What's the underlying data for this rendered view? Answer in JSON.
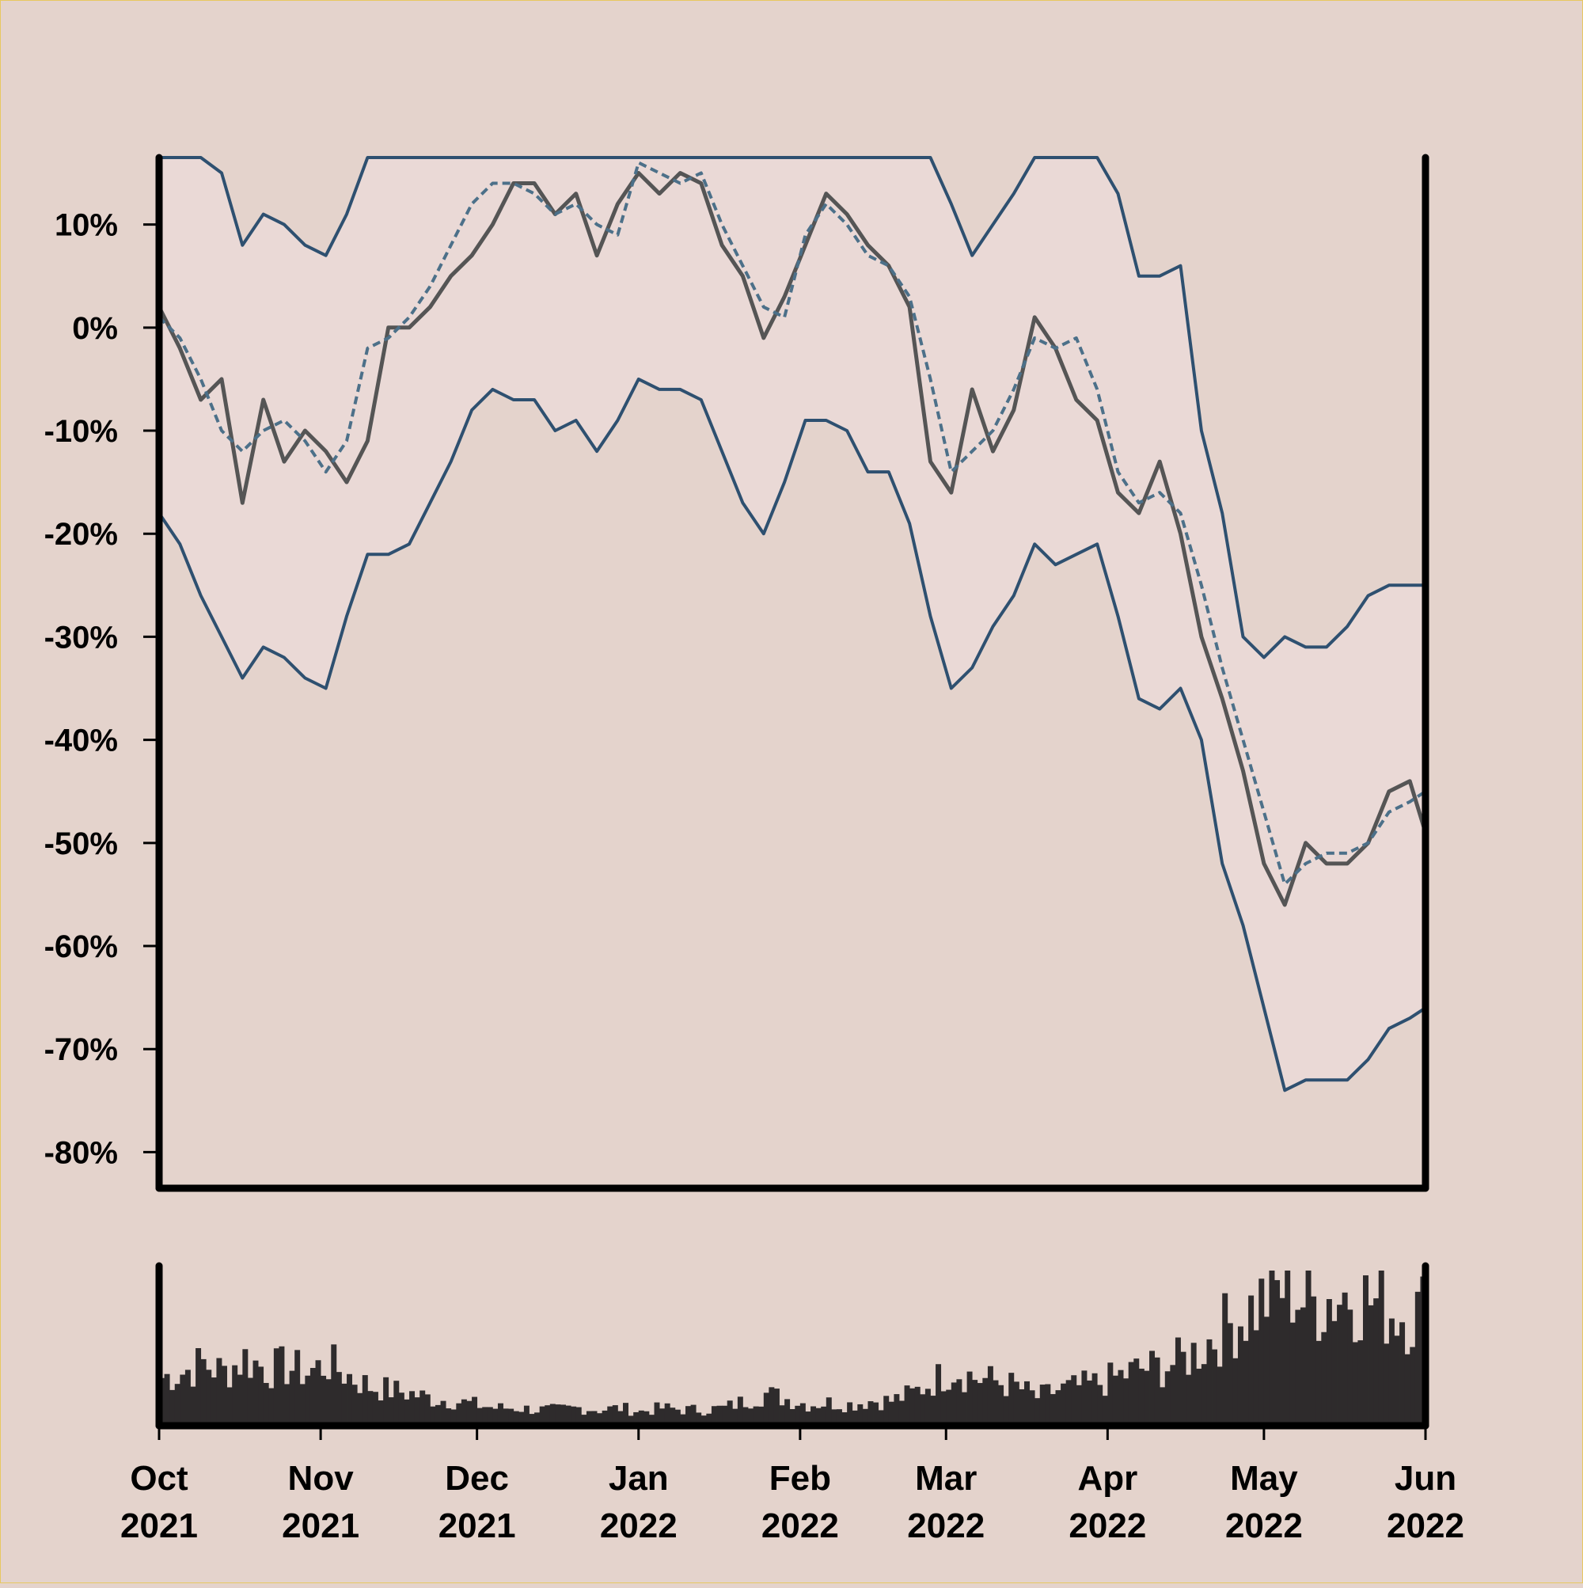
{
  "chart_data": [
    {
      "type": "line",
      "title": "",
      "xlabel": "",
      "ylabel": "",
      "x_range": [
        "2021-10-01",
        "2022-06-01"
      ],
      "y_range": [
        -0.835,
        0.165
      ],
      "y_ticks": [
        0.1,
        0.0,
        -0.1,
        -0.2,
        -0.3,
        -0.4,
        -0.5,
        -0.6,
        -0.7,
        -0.8
      ],
      "y_tick_labels": [
        "10%",
        "0%",
        "-10%",
        "-20%",
        "-30%",
        "-40%",
        "-50%",
        "-60%",
        "-70%",
        "-80%"
      ],
      "grid": false,
      "legend": "none",
      "band": {
        "description": "envelope shaded between upper and lower lines",
        "fill_color": "#ead9d6",
        "line_color": "#2e5070",
        "upper_clip": 0.165
      },
      "colors": {
        "price": "#555555",
        "moving_average": "#4c7089",
        "band": "#2e5070",
        "background": "#e4d3cc"
      },
      "series": [
        {
          "role": "price",
          "style": "solid",
          "x": [
            "2021-10-01",
            "2021-10-05",
            "2021-10-09",
            "2021-10-13",
            "2021-10-17",
            "2021-10-21",
            "2021-10-25",
            "2021-10-29",
            "2021-11-02",
            "2021-11-06",
            "2021-11-10",
            "2021-11-14",
            "2021-11-18",
            "2021-11-22",
            "2021-11-26",
            "2021-11-30",
            "2021-12-04",
            "2021-12-08",
            "2021-12-12",
            "2021-12-16",
            "2021-12-20",
            "2021-12-24",
            "2021-12-28",
            "2022-01-01",
            "2022-01-05",
            "2022-01-09",
            "2022-01-13",
            "2022-01-17",
            "2022-01-21",
            "2022-01-25",
            "2022-01-29",
            "2022-02-02",
            "2022-02-06",
            "2022-02-10",
            "2022-02-14",
            "2022-02-18",
            "2022-02-22",
            "2022-02-26",
            "2022-03-02",
            "2022-03-06",
            "2022-03-10",
            "2022-03-14",
            "2022-03-18",
            "2022-03-22",
            "2022-03-26",
            "2022-03-30",
            "2022-04-03",
            "2022-04-07",
            "2022-04-11",
            "2022-04-15",
            "2022-04-19",
            "2022-04-23",
            "2022-04-27",
            "2022-05-01",
            "2022-05-05",
            "2022-05-09",
            "2022-05-13",
            "2022-05-17",
            "2022-05-21",
            "2022-05-25",
            "2022-05-29",
            "2022-06-01"
          ],
          "y": [
            0.02,
            -0.02,
            -0.07,
            -0.05,
            -0.17,
            -0.07,
            -0.13,
            -0.1,
            -0.12,
            -0.15,
            -0.11,
            0.0,
            0.0,
            0.02,
            0.05,
            0.07,
            0.1,
            0.14,
            0.14,
            0.11,
            0.13,
            0.07,
            0.12,
            0.15,
            0.13,
            0.15,
            0.14,
            0.08,
            0.05,
            -0.01,
            0.03,
            0.08,
            0.13,
            0.11,
            0.08,
            0.06,
            0.02,
            -0.13,
            -0.16,
            -0.06,
            -0.12,
            -0.08,
            0.01,
            -0.02,
            -0.07,
            -0.09,
            -0.16,
            -0.18,
            -0.13,
            -0.2,
            -0.3,
            -0.36,
            -0.43,
            -0.52,
            -0.56,
            -0.5,
            -0.52,
            -0.52,
            -0.5,
            -0.45,
            -0.44,
            -0.49
          ]
        },
        {
          "role": "moving_average",
          "style": "dashed",
          "x": [
            "2021-10-01",
            "2021-10-05",
            "2021-10-09",
            "2021-10-13",
            "2021-10-17",
            "2021-10-21",
            "2021-10-25",
            "2021-10-29",
            "2021-11-02",
            "2021-11-06",
            "2021-11-10",
            "2021-11-14",
            "2021-11-18",
            "2021-11-22",
            "2021-11-26",
            "2021-11-30",
            "2021-12-04",
            "2021-12-08",
            "2021-12-12",
            "2021-12-16",
            "2021-12-20",
            "2021-12-24",
            "2021-12-28",
            "2022-01-01",
            "2022-01-05",
            "2022-01-09",
            "2022-01-13",
            "2022-01-17",
            "2022-01-21",
            "2022-01-25",
            "2022-01-29",
            "2022-02-02",
            "2022-02-06",
            "2022-02-10",
            "2022-02-14",
            "2022-02-18",
            "2022-02-22",
            "2022-02-26",
            "2022-03-02",
            "2022-03-06",
            "2022-03-10",
            "2022-03-14",
            "2022-03-18",
            "2022-03-22",
            "2022-03-26",
            "2022-03-30",
            "2022-04-03",
            "2022-04-07",
            "2022-04-11",
            "2022-04-15",
            "2022-04-19",
            "2022-04-23",
            "2022-04-27",
            "2022-05-01",
            "2022-05-05",
            "2022-05-09",
            "2022-05-13",
            "2022-05-17",
            "2022-05-21",
            "2022-05-25",
            "2022-05-29",
            "2022-06-01"
          ],
          "y": [
            0.01,
            -0.01,
            -0.05,
            -0.1,
            -0.12,
            -0.1,
            -0.09,
            -0.11,
            -0.14,
            -0.11,
            -0.02,
            -0.01,
            0.01,
            0.04,
            0.08,
            0.12,
            0.14,
            0.14,
            0.13,
            0.11,
            0.12,
            0.1,
            0.09,
            0.16,
            0.15,
            0.14,
            0.15,
            0.1,
            0.06,
            0.02,
            0.01,
            0.09,
            0.12,
            0.1,
            0.07,
            0.06,
            0.03,
            -0.05,
            -0.14,
            -0.12,
            -0.1,
            -0.06,
            -0.01,
            -0.02,
            -0.01,
            -0.06,
            -0.14,
            -0.17,
            -0.16,
            -0.18,
            -0.25,
            -0.33,
            -0.4,
            -0.47,
            -0.54,
            -0.52,
            -0.51,
            -0.51,
            -0.5,
            -0.47,
            -0.46,
            -0.45
          ]
        },
        {
          "role": "upper_band",
          "style": "solid",
          "x": [
            "2021-10-01",
            "2021-10-05",
            "2021-10-09",
            "2021-10-13",
            "2021-10-17",
            "2021-10-21",
            "2021-10-25",
            "2021-10-29",
            "2021-11-02",
            "2021-11-06",
            "2021-11-10",
            "2021-11-14",
            "2021-11-18",
            "2021-11-22",
            "2021-11-26",
            "2021-11-30",
            "2021-12-04",
            "2021-12-08",
            "2021-12-12",
            "2021-12-16",
            "2021-12-20",
            "2021-12-24",
            "2021-12-28",
            "2022-01-01",
            "2022-01-05",
            "2022-01-09",
            "2022-01-13",
            "2022-01-17",
            "2022-01-21",
            "2022-01-25",
            "2022-01-29",
            "2022-02-02",
            "2022-02-06",
            "2022-02-10",
            "2022-02-14",
            "2022-02-18",
            "2022-02-22",
            "2022-02-26",
            "2022-03-02",
            "2022-03-06",
            "2022-03-10",
            "2022-03-14",
            "2022-03-18",
            "2022-03-22",
            "2022-03-26",
            "2022-03-30",
            "2022-04-03",
            "2022-04-07",
            "2022-04-11",
            "2022-04-15",
            "2022-04-19",
            "2022-04-23",
            "2022-04-27",
            "2022-05-01",
            "2022-05-05",
            "2022-05-09",
            "2022-05-13",
            "2022-05-17",
            "2022-05-21",
            "2022-05-25",
            "2022-05-29",
            "2022-06-01"
          ],
          "y": [
            0.165,
            0.165,
            0.165,
            0.15,
            0.08,
            0.11,
            0.1,
            0.08,
            0.07,
            0.11,
            0.165,
            0.165,
            0.165,
            0.165,
            0.165,
            0.165,
            0.165,
            0.165,
            0.165,
            0.165,
            0.165,
            0.165,
            0.165,
            0.165,
            0.165,
            0.165,
            0.165,
            0.165,
            0.165,
            0.165,
            0.165,
            0.165,
            0.165,
            0.165,
            0.165,
            0.165,
            0.165,
            0.165,
            0.12,
            0.07,
            0.1,
            0.13,
            0.165,
            0.165,
            0.165,
            0.165,
            0.13,
            0.05,
            0.05,
            0.06,
            -0.1,
            -0.18,
            -0.3,
            -0.32,
            -0.3,
            -0.31,
            -0.31,
            -0.29,
            -0.26,
            -0.25,
            -0.25,
            -0.25
          ]
        },
        {
          "role": "lower_band",
          "style": "solid",
          "x": [
            "2021-10-01",
            "2021-10-05",
            "2021-10-09",
            "2021-10-13",
            "2021-10-17",
            "2021-10-21",
            "2021-10-25",
            "2021-10-29",
            "2021-11-02",
            "2021-11-06",
            "2021-11-10",
            "2021-11-14",
            "2021-11-18",
            "2021-11-22",
            "2021-11-26",
            "2021-11-30",
            "2021-12-04",
            "2021-12-08",
            "2021-12-12",
            "2021-12-16",
            "2021-12-20",
            "2021-12-24",
            "2021-12-28",
            "2022-01-01",
            "2022-01-05",
            "2022-01-09",
            "2022-01-13",
            "2022-01-17",
            "2022-01-21",
            "2022-01-25",
            "2022-01-29",
            "2022-02-02",
            "2022-02-06",
            "2022-02-10",
            "2022-02-14",
            "2022-02-18",
            "2022-02-22",
            "2022-02-26",
            "2022-03-02",
            "2022-03-06",
            "2022-03-10",
            "2022-03-14",
            "2022-03-18",
            "2022-03-22",
            "2022-03-26",
            "2022-03-30",
            "2022-04-03",
            "2022-04-07",
            "2022-04-11",
            "2022-04-15",
            "2022-04-19",
            "2022-04-23",
            "2022-04-27",
            "2022-05-01",
            "2022-05-05",
            "2022-05-09",
            "2022-05-13",
            "2022-05-17",
            "2022-05-21",
            "2022-05-25",
            "2022-05-29",
            "2022-06-01"
          ],
          "y": [
            -0.18,
            -0.21,
            -0.26,
            -0.3,
            -0.34,
            -0.31,
            -0.32,
            -0.34,
            -0.35,
            -0.28,
            -0.22,
            -0.22,
            -0.21,
            -0.17,
            -0.13,
            -0.08,
            -0.06,
            -0.07,
            -0.07,
            -0.1,
            -0.09,
            -0.12,
            -0.09,
            -0.05,
            -0.06,
            -0.06,
            -0.07,
            -0.12,
            -0.17,
            -0.2,
            -0.15,
            -0.09,
            -0.09,
            -0.1,
            -0.14,
            -0.14,
            -0.19,
            -0.28,
            -0.35,
            -0.33,
            -0.29,
            -0.26,
            -0.21,
            -0.23,
            -0.22,
            -0.21,
            -0.28,
            -0.36,
            -0.37,
            -0.35,
            -0.4,
            -0.52,
            -0.58,
            -0.66,
            -0.74,
            -0.73,
            -0.73,
            -0.73,
            -0.71,
            -0.68,
            -0.67,
            -0.66
          ]
        }
      ]
    },
    {
      "type": "bar",
      "title": "",
      "xlabel": "",
      "ylabel": "",
      "y_ticks": [],
      "bar_color": "#2e2b2c",
      "series": [
        {
          "role": "volume",
          "x": [
            "2021-10-01",
            "2021-10-05",
            "2021-10-09",
            "2021-10-13",
            "2021-10-17",
            "2021-10-21",
            "2021-10-25",
            "2021-10-29",
            "2021-11-02",
            "2021-11-06",
            "2021-11-10",
            "2021-11-14",
            "2021-11-18",
            "2021-11-22",
            "2021-11-26",
            "2021-11-30",
            "2021-12-04",
            "2021-12-08",
            "2021-12-12",
            "2021-12-16",
            "2021-12-20",
            "2021-12-24",
            "2021-12-28",
            "2022-01-01",
            "2022-01-05",
            "2022-01-09",
            "2022-01-13",
            "2022-01-17",
            "2022-01-21",
            "2022-01-25",
            "2022-01-29",
            "2022-02-02",
            "2022-02-06",
            "2022-02-10",
            "2022-02-14",
            "2022-02-18",
            "2022-02-22",
            "2022-02-26",
            "2022-03-02",
            "2022-03-06",
            "2022-03-10",
            "2022-03-14",
            "2022-03-18",
            "2022-03-22",
            "2022-03-26",
            "2022-03-30",
            "2022-04-03",
            "2022-04-07",
            "2022-04-11",
            "2022-04-15",
            "2022-04-19",
            "2022-04-23",
            "2022-04-27",
            "2022-05-01",
            "2022-05-05",
            "2022-05-09",
            "2022-05-13",
            "2022-05-17",
            "2022-05-21",
            "2022-05-25",
            "2022-05-29",
            "2022-06-01"
          ],
          "values": [
            0.27,
            0.3,
            0.35,
            0.3,
            0.38,
            0.32,
            0.33,
            0.3,
            0.35,
            0.28,
            0.22,
            0.2,
            0.18,
            0.15,
            0.14,
            0.12,
            0.1,
            0.1,
            0.09,
            0.09,
            0.1,
            0.09,
            0.1,
            0.08,
            0.1,
            0.09,
            0.09,
            0.1,
            0.14,
            0.18,
            0.15,
            0.12,
            0.13,
            0.12,
            0.14,
            0.14,
            0.18,
            0.25,
            0.32,
            0.27,
            0.25,
            0.22,
            0.16,
            0.2,
            0.22,
            0.24,
            0.28,
            0.32,
            0.33,
            0.37,
            0.45,
            0.55,
            0.63,
            0.72,
            0.8,
            0.68,
            0.72,
            0.75,
            0.7,
            0.65,
            0.62,
            0.68
          ]
        }
      ]
    }
  ],
  "x_axis": {
    "ticks": [
      {
        "date": "2021-10-01",
        "month": "Oct",
        "year": "2021"
      },
      {
        "date": "2021-11-01",
        "month": "Nov",
        "year": "2021"
      },
      {
        "date": "2021-12-01",
        "month": "Dec",
        "year": "2021"
      },
      {
        "date": "2022-01-01",
        "month": "Jan",
        "year": "2022"
      },
      {
        "date": "2022-02-01",
        "month": "Feb",
        "year": "2022"
      },
      {
        "date": "2022-03-01",
        "month": "Mar",
        "year": "2022"
      },
      {
        "date": "2022-04-01",
        "month": "Apr",
        "year": "2022"
      },
      {
        "date": "2022-05-01",
        "month": "May",
        "year": "2022"
      },
      {
        "date": "2022-06-01",
        "month": "Jun",
        "year": "2022"
      }
    ]
  }
}
